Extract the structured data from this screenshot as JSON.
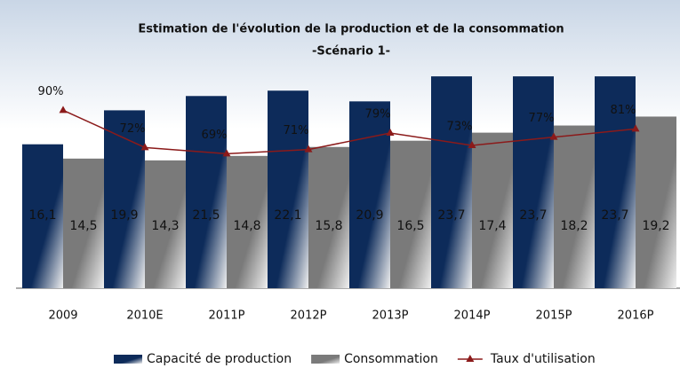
{
  "chart_data": {
    "type": "bar",
    "title": "Estimation de l'évolution de la production et de la consommation",
    "subtitle": "-Scénario 1-",
    "categories": [
      "2009",
      "2010E",
      "2011P",
      "2012P",
      "2013P",
      "2014P",
      "2015P",
      "2016P"
    ],
    "series": [
      {
        "name": "Capacité de production",
        "type": "bar",
        "color": "#0d2b5a",
        "values": [
          16.1,
          19.9,
          21.5,
          22.1,
          20.9,
          23.7,
          23.7,
          23.7
        ],
        "value_labels": [
          "16,1",
          "19,9",
          "21,5",
          "22,1",
          "20,9",
          "23,7",
          "23,7",
          "23,7"
        ]
      },
      {
        "name": "Consommation",
        "type": "bar",
        "color": "#7a7a7a",
        "values": [
          14.5,
          14.3,
          14.8,
          15.8,
          16.5,
          17.4,
          18.2,
          19.2
        ],
        "value_labels": [
          "14,5",
          "14,3",
          "14,8",
          "15,8",
          "16,5",
          "17,4",
          "18,2",
          "19,2"
        ]
      },
      {
        "name": "Taux d'utilisation",
        "type": "line",
        "axis": "y2",
        "color": "#8b1a1a",
        "values": [
          90,
          72,
          69,
          71,
          79,
          73,
          77,
          81
        ],
        "value_labels": [
          "90%",
          "72%",
          "69%",
          "71%",
          "79%",
          "73%",
          "77%",
          "81%"
        ]
      }
    ],
    "ylim": [
      0,
      25
    ],
    "y2lim": [
      4,
      112
    ],
    "legend": "bottom"
  }
}
